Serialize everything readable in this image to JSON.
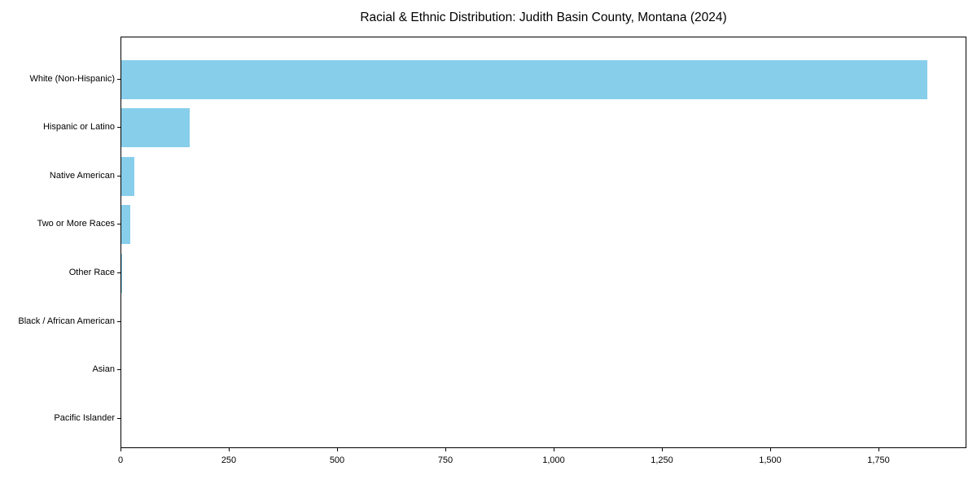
{
  "chart_data": {
    "type": "bar",
    "orientation": "horizontal",
    "title": "Racial & Ethnic Distribution: Judith Basin County, Montana (2024)",
    "categories": [
      "White (Non-Hispanic)",
      "Hispanic or Latino",
      "Native American",
      "Two or More Races",
      "Other Race",
      "Black / African American",
      "Asian",
      "Pacific Islander"
    ],
    "values": [
      1860,
      158,
      30,
      21,
      2,
      0,
      0,
      0
    ],
    "xlabel": "",
    "ylabel": "",
    "xlim": [
      0,
      1953
    ],
    "x_ticks": [
      0,
      250,
      500,
      750,
      1000,
      1250,
      1500,
      1750
    ],
    "x_tick_labels": [
      "0",
      "250",
      "500",
      "750",
      "1,000",
      "1,250",
      "1,500",
      "1,750"
    ],
    "bar_color": "#87CEEB",
    "axis_color": "#000000",
    "text_color": "#000000",
    "background_color": "#ffffff",
    "grid": false,
    "legend": null
  }
}
